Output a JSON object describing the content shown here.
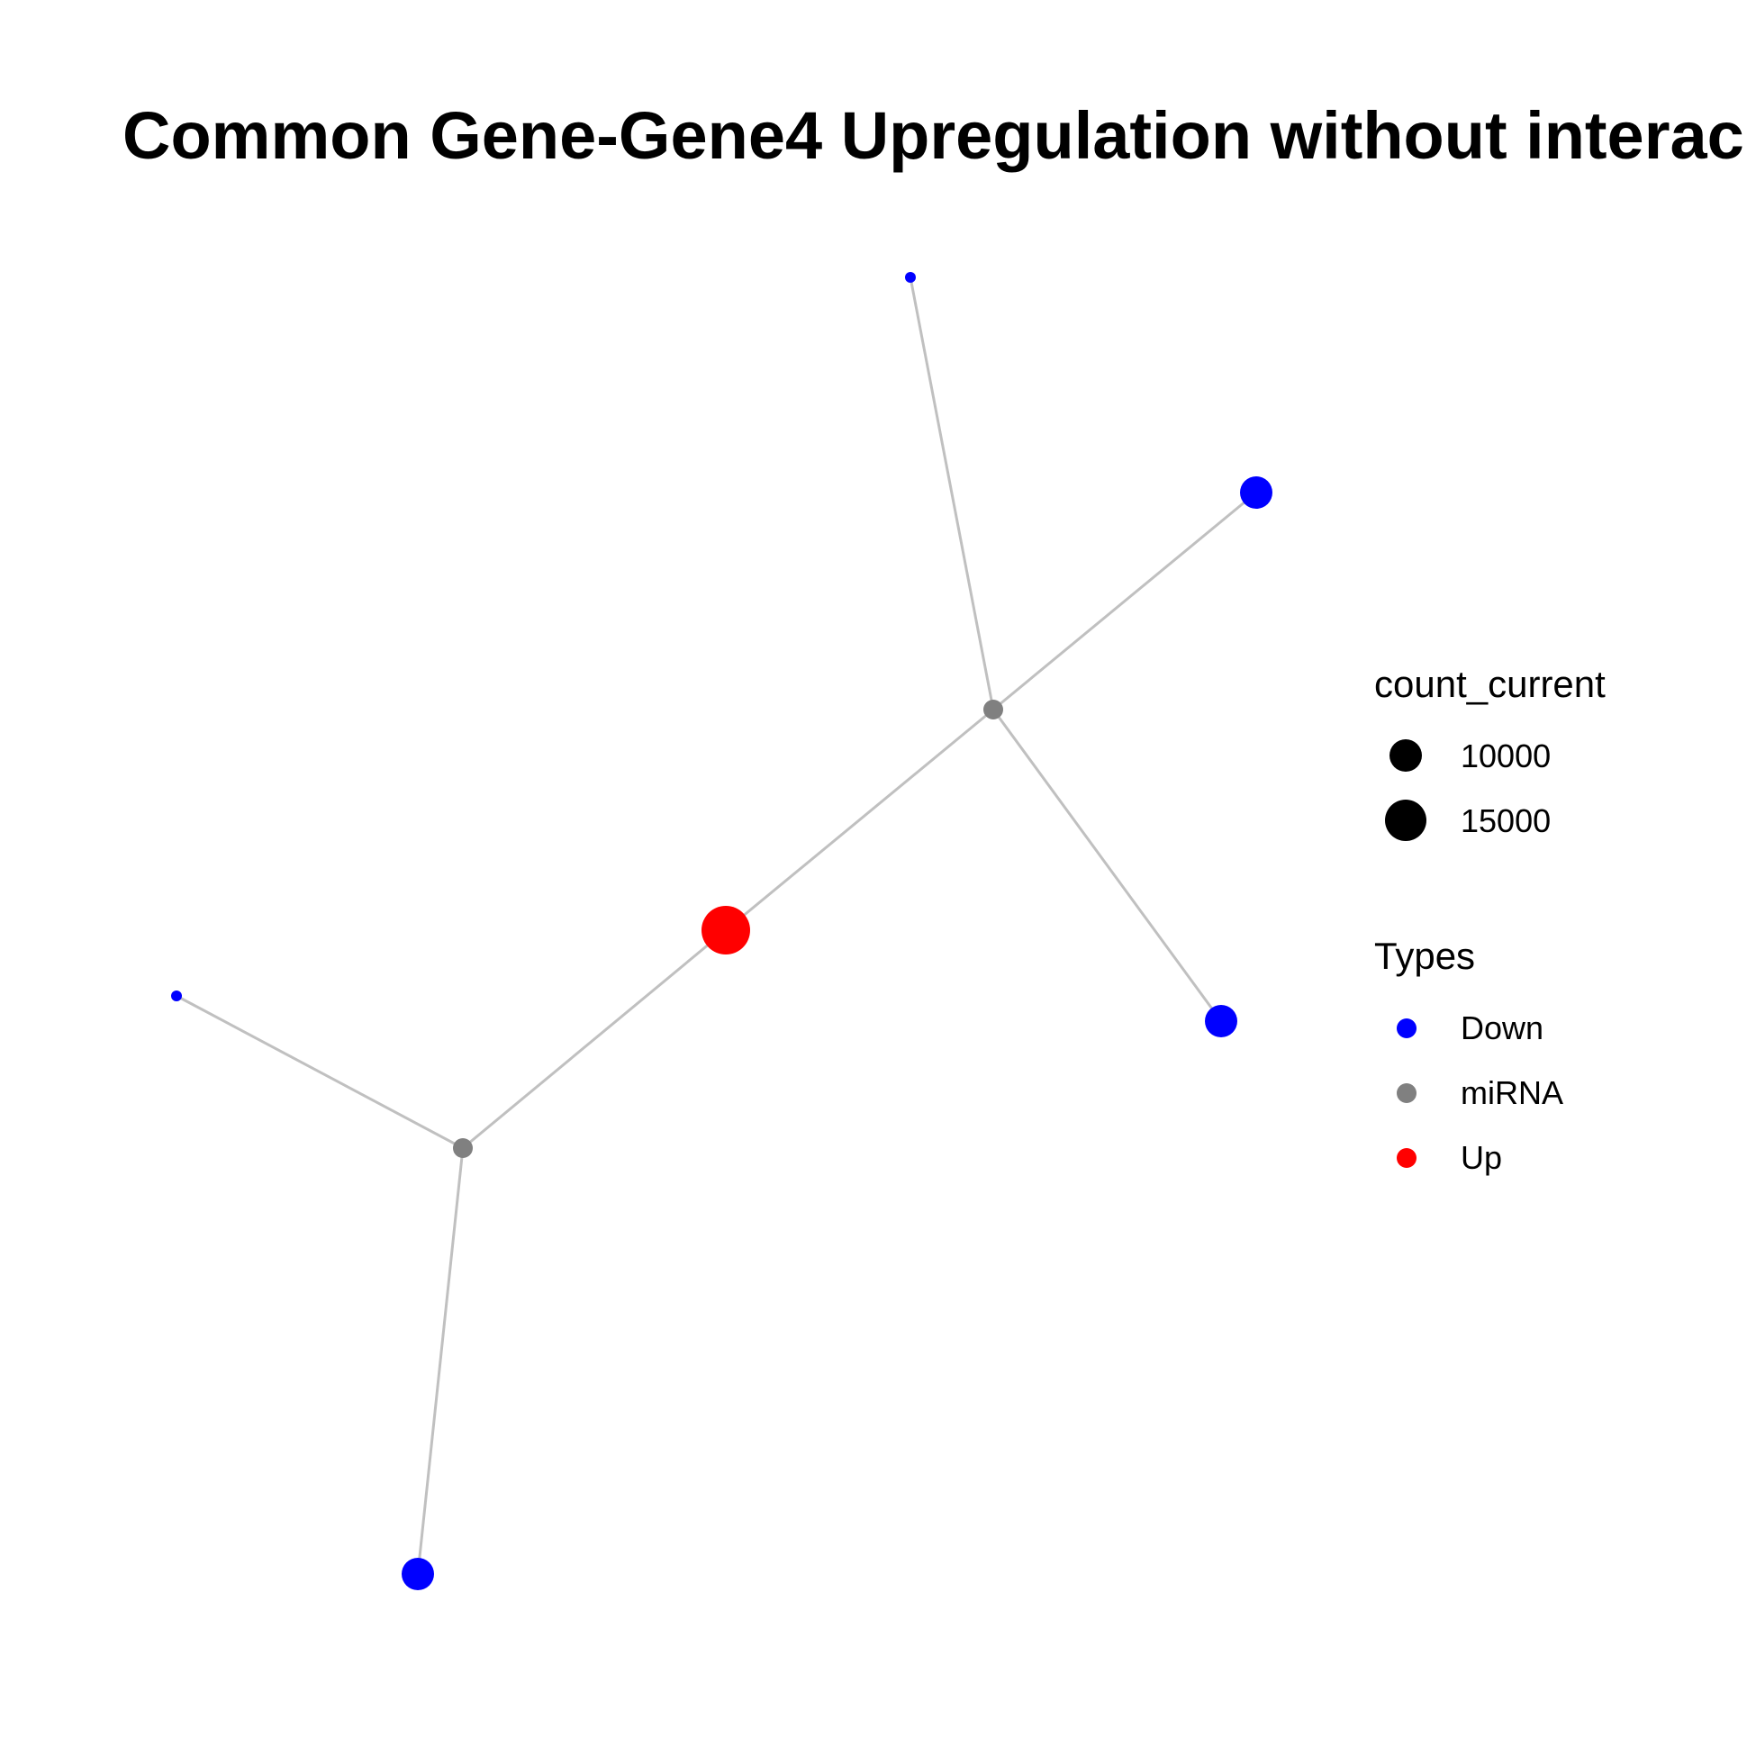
{
  "title": "Common Gene-Gene4 Upregulation without interac",
  "colors": {
    "Down": "#0000FF",
    "miRNA": "#808080",
    "Up": "#FF0000",
    "edge": "#C0C0C0"
  },
  "nodes": [
    {
      "id": "up-gene",
      "type": "Up",
      "size": "large"
    },
    {
      "id": "mirna-1",
      "type": "miRNA",
      "size": "small"
    },
    {
      "id": "mirna-2",
      "type": "miRNA",
      "size": "small"
    },
    {
      "id": "down-1",
      "type": "Down",
      "size": "tiny"
    },
    {
      "id": "down-2",
      "type": "Down",
      "size": "medium"
    },
    {
      "id": "down-3",
      "type": "Down",
      "size": "medium"
    },
    {
      "id": "down-4",
      "type": "Down",
      "size": "tiny"
    },
    {
      "id": "down-5",
      "type": "Down",
      "size": "medium"
    }
  ],
  "edges": [
    [
      "up-gene",
      "mirna-1"
    ],
    [
      "up-gene",
      "mirna-2"
    ],
    [
      "mirna-1",
      "down-1"
    ],
    [
      "mirna-1",
      "down-2"
    ],
    [
      "mirna-1",
      "down-3"
    ],
    [
      "mirna-2",
      "down-4"
    ],
    [
      "mirna-2",
      "down-5"
    ]
  ],
  "legend": {
    "size_title": "count_current",
    "size_items": [
      {
        "label": "10000",
        "value": 10000
      },
      {
        "label": "15000",
        "value": 15000
      }
    ],
    "type_title": "Types",
    "type_items": [
      {
        "label": "Down",
        "color": "#0000FF"
      },
      {
        "label": "miRNA",
        "color": "#808080"
      },
      {
        "label": "Up",
        "color": "#FF0000"
      }
    ]
  }
}
